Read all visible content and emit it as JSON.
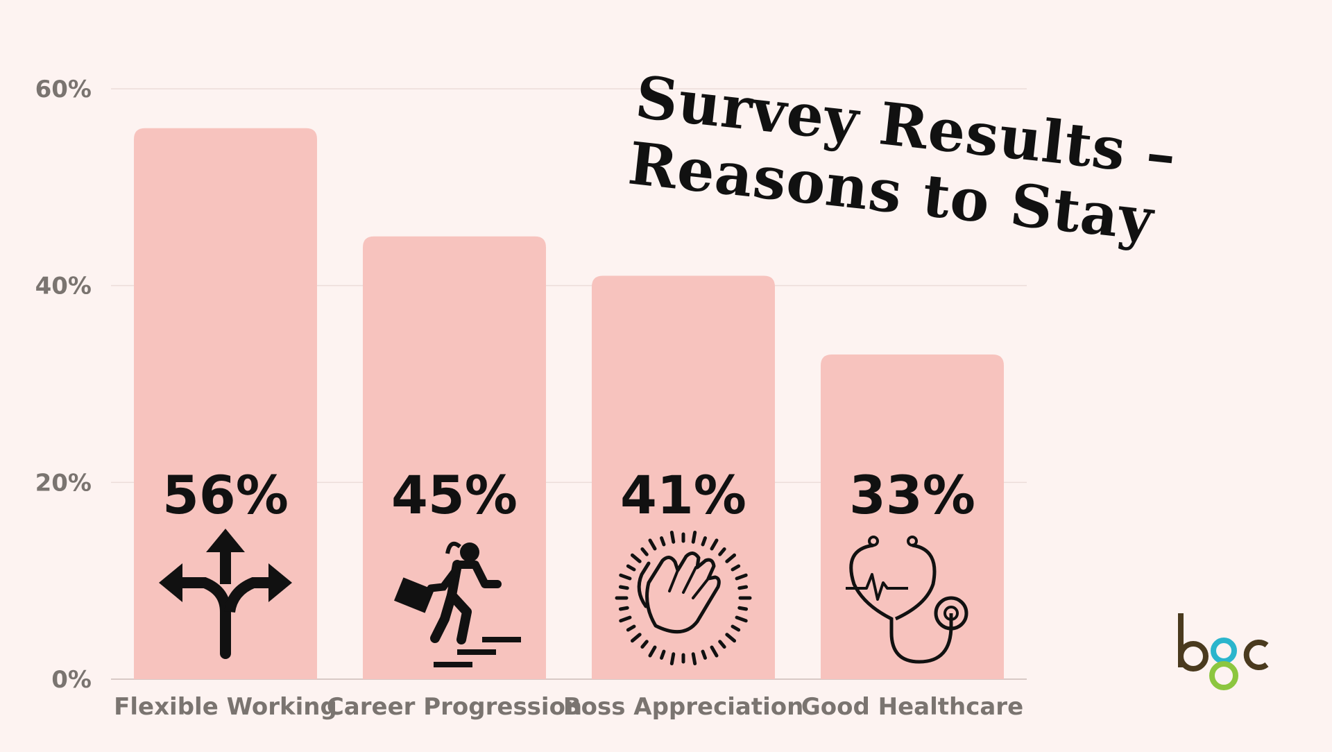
{
  "chart_data": {
    "type": "bar",
    "title_lines": [
      "Survey Results –",
      "Reasons to Stay"
    ],
    "categories": [
      "Flexible Working",
      "Career Progression",
      "Boss Appreciation",
      "Good Healthcare"
    ],
    "values": [
      56,
      45,
      41,
      33
    ],
    "value_labels": [
      "56%",
      "45%",
      "41%",
      "33%"
    ],
    "icons": [
      "split-arrows-icon",
      "climbing-stairs-person-icon",
      "clapping-hands-icon",
      "stethoscope-icon"
    ],
    "y_ticks": [
      0,
      20,
      40,
      60
    ],
    "y_tick_labels": [
      "0%",
      "20%",
      "40%",
      "60%"
    ],
    "ylim": [
      0,
      60
    ],
    "grid": true,
    "legend": "none"
  },
  "logo": {
    "text": "bgc",
    "name": "bgc-logo"
  },
  "colors": {
    "background": "#fdf3f1",
    "bar": "#f7c3be",
    "grid": "#ecdcd9",
    "axis_text": "#7a7470",
    "value_text": "#111111",
    "logo_brown": "#4a3a1e",
    "logo_teal": "#2bb5cc",
    "logo_green": "#8cc63f"
  }
}
